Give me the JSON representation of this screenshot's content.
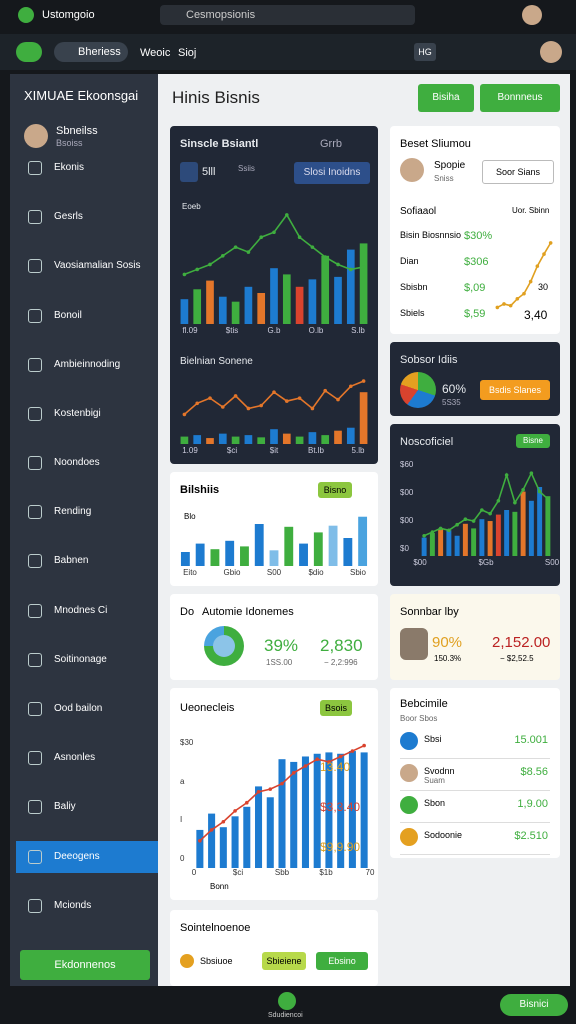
{
  "topbar": {
    "app": "Ustomgoio",
    "search": "Cesmopsionis"
  },
  "navbar": {
    "tabs": [
      "Bheriess",
      "Weoic",
      "Sioj"
    ],
    "badge": "HG"
  },
  "sidebar": {
    "title": "XIMUAE Ekoonsgai",
    "user": "Sbneilss",
    "user_sub": "Bsoiss",
    "items": [
      {
        "label": "Ekonis"
      },
      {
        "label": "Gesrls"
      },
      {
        "label": "Vaosiamalian Sosis"
      },
      {
        "label": "Bonoil"
      },
      {
        "label": "Ambieinnoding"
      },
      {
        "label": "Kostenbigi"
      },
      {
        "label": "Noondoes"
      },
      {
        "label": "Rending"
      },
      {
        "label": "Babnen"
      },
      {
        "label": "Mnodnes Ci"
      },
      {
        "label": "Soitinonage"
      },
      {
        "label": "Ood bailon"
      },
      {
        "label": "Asnonles"
      },
      {
        "label": "Baliy"
      },
      {
        "label": "Deeogens",
        "active": true
      },
      {
        "label": "Mcionds"
      }
    ],
    "button": "Ekdonnenos"
  },
  "header": {
    "title": "Hinis Bisnis",
    "buttons": [
      "Bisiha",
      "Bonnneus"
    ]
  },
  "sales_card": {
    "title": "Sinscle Bsiantl",
    "tag": "Grrb",
    "stat": "5lll",
    "stat_sub": "Ssiis",
    "button": "Slosi Inoidns",
    "chart_label": "Eoeb",
    "chart": {
      "ylim": [
        0,
        100
      ],
      "bars": [
        20,
        28,
        35,
        22,
        18,
        30,
        25,
        45,
        40,
        30,
        36,
        55,
        38,
        60,
        65
      ],
      "bar_colors": [
        "#1d7bd0",
        "#3fae3f",
        "#e4762a",
        "#1d7bd0",
        "#3fae3f",
        "#1d7bd0",
        "#e4762a",
        "#1d7bd0",
        "#3fae3f",
        "#d9432e",
        "#1d7bd0",
        "#3fae3f",
        "#1d7bd0",
        "#1d7bd0",
        "#3fae3f"
      ],
      "line": [
        40,
        44,
        48,
        55,
        62,
        58,
        70,
        74,
        88,
        70,
        62,
        54,
        48,
        44,
        46
      ],
      "line_color": "#3fae3f",
      "x_labels": [
        "fl.09",
        "$tis",
        "G.b",
        "O.lb",
        "S.lb"
      ]
    },
    "chart2_title": "Bielnian Sonene",
    "chart2": {
      "ylim": [
        0,
        100
      ],
      "bars": [
        10,
        12,
        8,
        14,
        10,
        12,
        9,
        20,
        14,
        10,
        16,
        12,
        18,
        22,
        70
      ],
      "bar_colors": [
        "#3fae3f",
        "#1d7bd0",
        "#e4762a",
        "#1d7bd0",
        "#3fae3f",
        "#1d7bd0",
        "#3fae3f",
        "#1d7bd0",
        "#e4762a",
        "#3fae3f",
        "#1d7bd0",
        "#3fae3f",
        "#e4762a",
        "#1d7bd0",
        "#e4762a"
      ],
      "line": [
        40,
        55,
        62,
        50,
        65,
        48,
        52,
        70,
        58,
        62,
        48,
        72,
        60,
        78,
        85
      ],
      "line_color": "#e4762a",
      "x_labels": [
        "1.09",
        "$ci",
        "$it",
        "Bt.lb",
        "5.lb"
      ]
    }
  },
  "bars_card": {
    "title": "Bilshiis",
    "tag": "Bisno",
    "axis_label": "Blo",
    "chart": {
      "ylim": [
        0,
        100
      ],
      "bars": [
        25,
        40,
        30,
        45,
        35,
        75,
        28,
        70,
        40,
        60,
        72,
        50,
        88
      ],
      "bar_colors": [
        "#1d7bd0",
        "#1d7bd0",
        "#3fae3f",
        "#1d7bd0",
        "#3fae3f",
        "#1d7bd0",
        "#7fbde8",
        "#3fae3f",
        "#1d7bd0",
        "#3fae3f",
        "#7fbde8",
        "#1d7bd0",
        "#4aa3df"
      ],
      "x_labels": [
        "Eito",
        "Gbio",
        "S00",
        "$dio",
        "Sbio"
      ]
    }
  },
  "donut_card": {
    "prefix": "Do",
    "title": "Automie Idonemes",
    "percent": "39%",
    "percent_sub": "1SS.00",
    "amount": "2,830",
    "amount_sub": "− 2,2:996"
  },
  "combo_card": {
    "title": "Ueonecleis",
    "tag": "Bsois",
    "y_labels": [
      "$30",
      "a",
      "I",
      "0"
    ],
    "x_labels": [
      "0",
      "$ci",
      "Sbb",
      "$1b",
      "70"
    ],
    "legend": "Bonn",
    "chart": {
      "ylim": [
        0,
        100
      ],
      "bars": [
        28,
        40,
        30,
        38,
        45,
        60,
        52,
        80,
        78,
        82,
        84,
        85,
        84,
        86,
        85
      ],
      "bar_colors": [
        "#1d7bd0",
        "#1d7bd0",
        "#1d7bd0",
        "#1d7bd0",
        "#1d7bd0",
        "#1d7bd0",
        "#1d7bd0",
        "#1d7bd0",
        "#1d7bd0",
        "#1d7bd0",
        "#1d7bd0",
        "#1d7bd0",
        "#1d7bd0",
        "#1d7bd0",
        "#1d7bd0"
      ],
      "line": [
        20,
        28,
        34,
        42,
        48,
        56,
        58,
        62,
        70,
        75,
        80,
        78,
        82,
        86,
        90
      ],
      "line_color": "#d9432e"
    },
    "values": [
      "13.40",
      "$3,3.40",
      "$9,9.90"
    ]
  },
  "bottom_card": {
    "title": "Sointelnoenoe",
    "item": "Sbsiuoe",
    "tag": "Sbieiene",
    "button": "Ebsino"
  },
  "profile_card": {
    "title": "Beset Sliumou",
    "name": "Spopie",
    "name_sub": "Sniss",
    "button": "Soor Sians",
    "section": "Sofiaaol",
    "section_tag": "Uor. Sbinn",
    "rows": [
      {
        "label": "Bisin Biosnnsio",
        "value": "$30%"
      },
      {
        "label": "Dian",
        "value": "$306"
      },
      {
        "label": "Sbisbn",
        "value": "$,09"
      },
      {
        "label": "Sbiels",
        "value": "$,59"
      }
    ],
    "chart": {
      "ylim": [
        0,
        100
      ],
      "line": [
        10,
        14,
        12,
        20,
        26,
        40,
        58,
        72,
        85
      ],
      "line_color": "#e0a020"
    },
    "corner_labels": [
      "30",
      "3,40"
    ]
  },
  "progress_card": {
    "title": "Sobsor Idiis",
    "percent": "60%",
    "sub": "5S35",
    "button": "Bsdis Slanes"
  },
  "notif_card": {
    "title": "Noscoficiel",
    "tag": "Bisne",
    "y_labels": [
      "$60",
      "$00",
      "$00",
      "$0"
    ],
    "x_labels": [
      "$00",
      "$Gb",
      "S00"
    ],
    "chart": {
      "ylim": [
        0,
        100
      ],
      "bars": [
        20,
        25,
        30,
        28,
        22,
        35,
        30,
        40,
        38,
        45,
        50,
        48,
        70,
        60,
        75,
        65
      ],
      "bar_colors": [
        "#1d7bd0",
        "#3fae3f",
        "#e4762a",
        "#1d7bd0",
        "#1d7bd0",
        "#e4762a",
        "#3fae3f",
        "#1d7bd0",
        "#e4762a",
        "#d9432e",
        "#1d7bd0",
        "#3fae3f",
        "#e4762a",
        "#1d7bd0",
        "#1d7bd0",
        "#3fae3f"
      ],
      "line": [
        22,
        26,
        30,
        28,
        34,
        40,
        38,
        50,
        46,
        60,
        88,
        58,
        72,
        90,
        70,
        62
      ],
      "line_color": "#3fae3f"
    }
  },
  "summary_card": {
    "title": "Sonnbar lby",
    "percent": "90%",
    "percent_sub": "150.3%",
    "amount": "2,152.00",
    "amount_sub": "− $2,52.5"
  },
  "list_card": {
    "title": "Bebcimile",
    "sub": "Boor Sbos",
    "rows": [
      {
        "label": "Sbsi",
        "value": "15.001"
      },
      {
        "label": "Svodnn",
        "sub": "Suam",
        "value": "$8.56"
      },
      {
        "label": "Sbon",
        "value": "1,9.00"
      },
      {
        "label": "Sodoonie",
        "value": "$2.510"
      }
    ]
  },
  "bottombar": {
    "center": "Sdudiencoi",
    "button": "Bisnici"
  }
}
